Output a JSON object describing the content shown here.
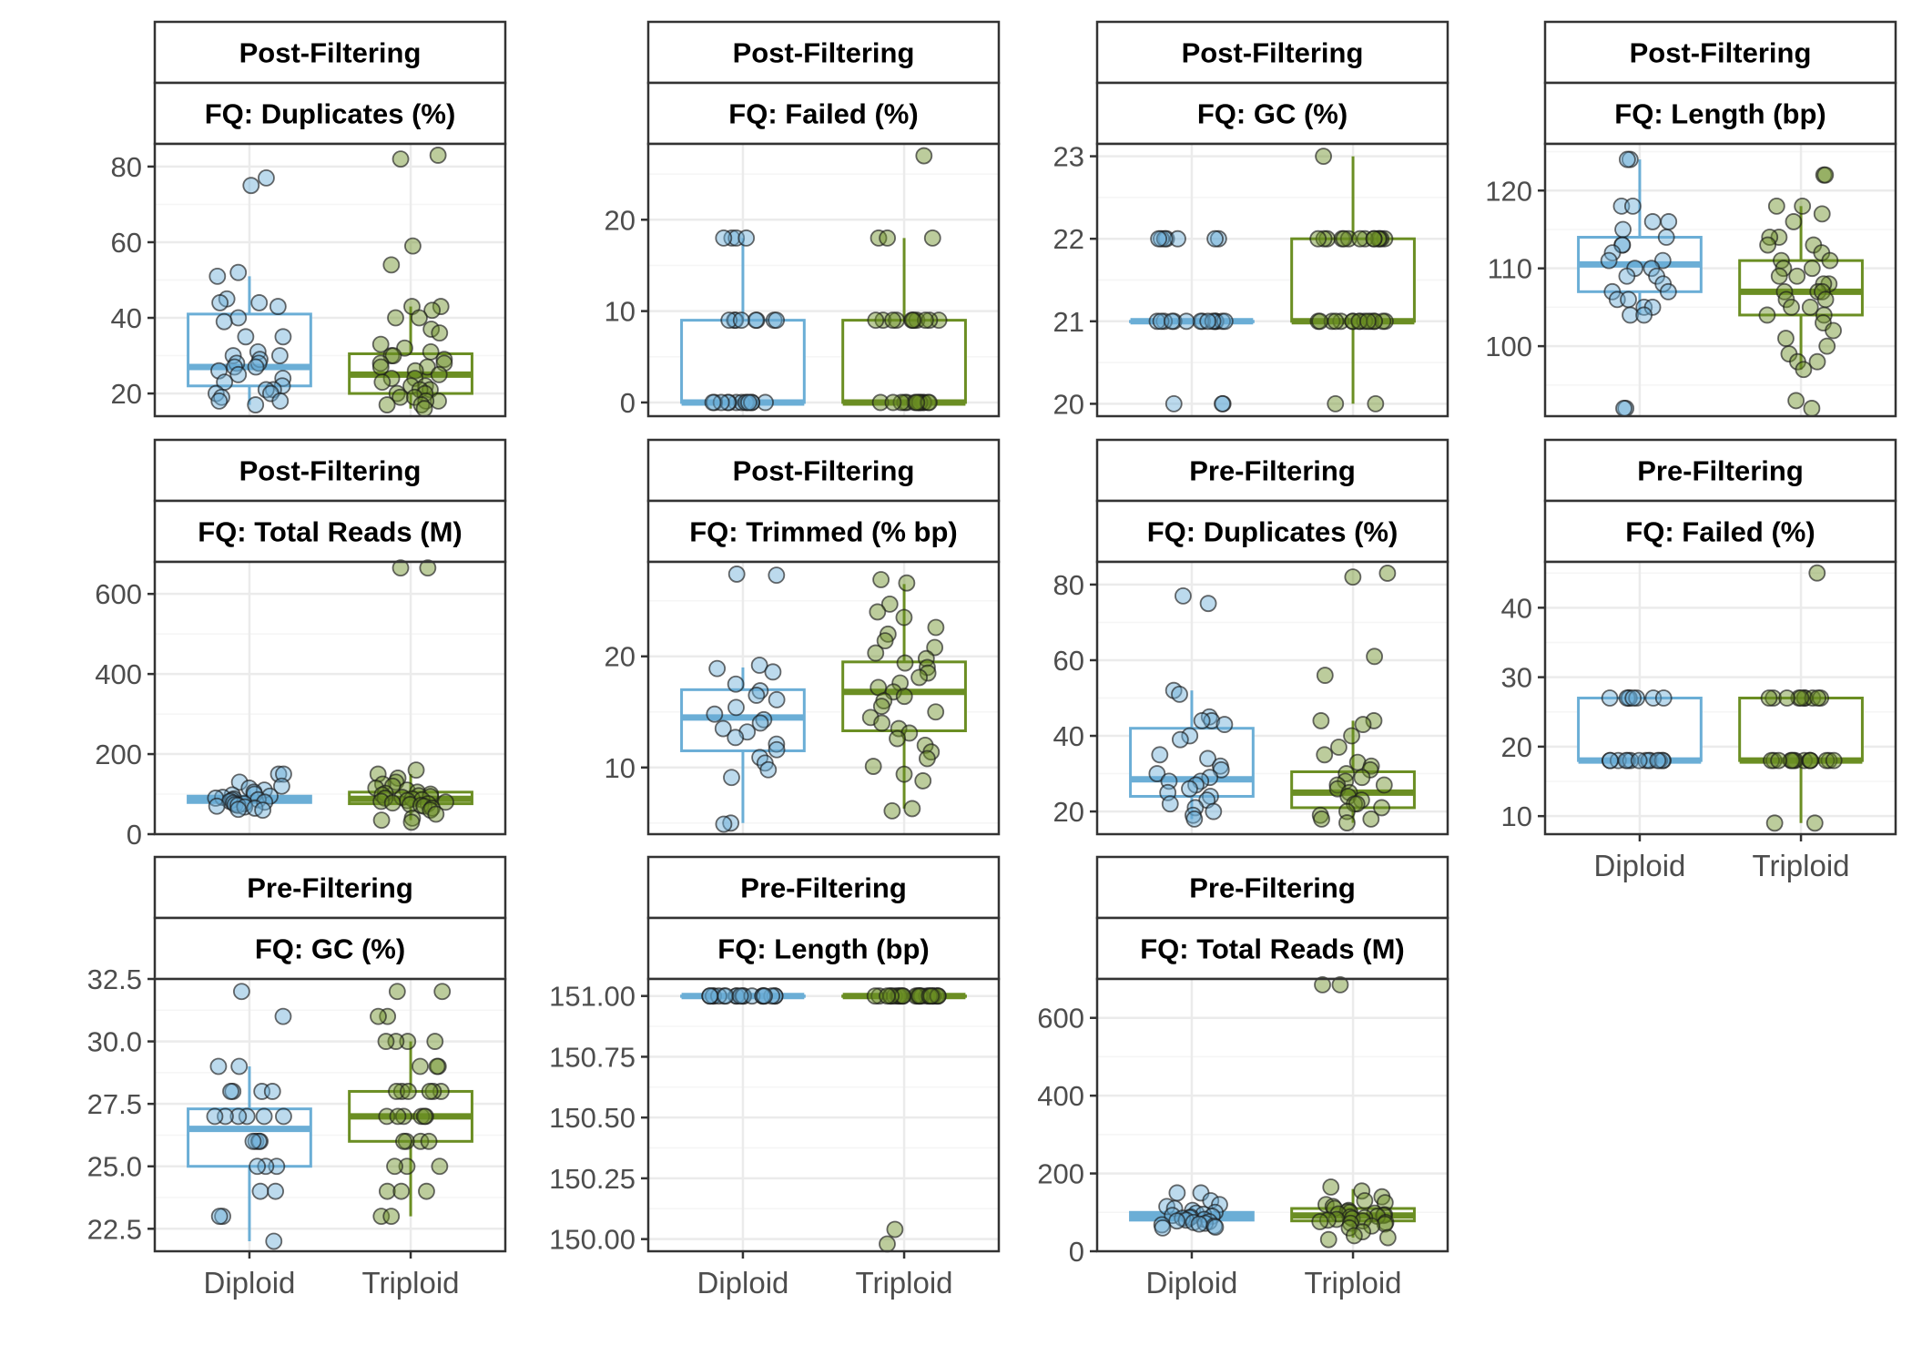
{
  "colors": {
    "diploid": "#6baed6",
    "triploid": "#6b8e23",
    "point_outline": "#1a1a1a",
    "strip_background": "#ffffff",
    "panel_border": "#333333",
    "grid_major": "#ebebeb",
    "grid_minor": "#f5f5f5"
  },
  "categories": [
    "Diploid",
    "Triploid"
  ],
  "chart_data": [
    {
      "type": "box",
      "strip_top": "Post-Filtering",
      "strip_bottom": "FQ: Duplicates (%)",
      "yticks": [
        20,
        40,
        60,
        80
      ],
      "ylim": [
        14,
        86
      ],
      "boxes": [
        {
          "q1": 22,
          "median": 27,
          "q3": 41,
          "lower": 17,
          "upper": 51
        },
        {
          "q1": 20,
          "median": 25,
          "q3": 30.5,
          "lower": 16,
          "upper": 43
        }
      ],
      "points": [
        [
          77,
          75,
          52,
          51,
          45,
          44,
          44,
          43,
          40,
          39,
          35,
          35,
          31,
          30,
          30,
          29,
          28,
          28,
          27,
          27,
          26,
          25,
          24,
          23,
          22,
          21,
          21,
          20,
          20,
          19,
          18,
          18,
          17
        ],
        [
          83,
          82,
          59,
          54,
          43,
          43,
          42,
          40,
          40,
          37,
          36,
          33,
          32,
          31,
          30,
          30,
          29,
          28,
          28,
          27,
          27,
          26,
          25,
          24,
          24,
          23,
          22,
          22,
          21,
          21,
          20,
          20,
          19,
          19,
          18,
          18,
          17,
          17,
          16
        ]
      ]
    },
    {
      "type": "box",
      "strip_top": "Post-Filtering",
      "strip_bottom": "FQ: Failed (%)",
      "yticks": [
        0,
        10,
        20
      ],
      "ylim": [
        -1.5,
        28.3
      ],
      "boxes": [
        {
          "q1": 0,
          "median": 0,
          "q3": 9,
          "lower": 0,
          "upper": 18
        },
        {
          "q1": 0,
          "median": 0,
          "q3": 9,
          "lower": 0,
          "upper": 18
        }
      ],
      "points": [
        [
          18,
          18,
          18,
          18,
          9,
          9,
          9,
          9,
          9,
          9,
          9,
          9,
          0,
          0,
          0,
          0,
          0,
          0,
          0,
          0,
          0,
          0,
          0,
          0,
          0
        ],
        [
          27,
          18,
          18,
          18,
          9,
          9,
          9,
          9,
          9,
          9,
          9,
          9,
          9,
          9,
          9,
          0,
          0,
          0,
          0,
          0,
          0,
          0,
          0,
          0,
          0,
          0,
          0,
          0,
          0,
          0
        ]
      ]
    },
    {
      "type": "box",
      "strip_top": "Post-Filtering",
      "strip_bottom": "FQ: GC (%)",
      "yticks": [
        20,
        21,
        22,
        23
      ],
      "ylim": [
        19.85,
        23.15
      ],
      "boxes": [
        {
          "q1": 21,
          "median": 21,
          "q3": 21,
          "lower": 21,
          "upper": 21
        },
        {
          "q1": 21,
          "median": 21,
          "q3": 22,
          "lower": 20,
          "upper": 23
        }
      ],
      "points": [
        [
          22,
          22,
          22,
          22,
          22,
          22,
          22,
          21,
          21,
          21,
          21,
          21,
          21,
          21,
          21,
          21,
          21,
          21,
          21,
          21,
          21,
          21,
          20,
          20,
          20
        ],
        [
          23,
          22,
          22,
          22,
          22,
          22,
          22,
          22,
          22,
          22,
          22,
          22,
          22,
          22,
          22,
          21,
          21,
          21,
          21,
          21,
          21,
          21,
          21,
          21,
          21,
          21,
          21,
          21,
          21,
          21,
          21,
          20,
          20
        ]
      ]
    },
    {
      "type": "box",
      "strip_top": "Post-Filtering",
      "strip_bottom": "FQ: Length (bp)",
      "yticks": [
        100,
        110,
        120
      ],
      "ylim": [
        91,
        126
      ],
      "boxes": [
        {
          "q1": 107,
          "median": 110.5,
          "q3": 114,
          "lower": 104,
          "upper": 124
        },
        {
          "q1": 104,
          "median": 107,
          "q3": 111,
          "lower": 97,
          "upper": 118
        }
      ],
      "points": [
        [
          124,
          124,
          118,
          118,
          116,
          116,
          115,
          114,
          113,
          113,
          112,
          111,
          111,
          110,
          110,
          109,
          109,
          108,
          107,
          107,
          106,
          106,
          105,
          105,
          104,
          104,
          92,
          92
        ],
        [
          122,
          122,
          118,
          118,
          117,
          116,
          114,
          114,
          113,
          113,
          112,
          111,
          111,
          110,
          110,
          109,
          109,
          108,
          108,
          107,
          107,
          107,
          106,
          106,
          105,
          105,
          104,
          104,
          103,
          102,
          101,
          100,
          99,
          98,
          98,
          97,
          93,
          92
        ]
      ]
    },
    {
      "type": "box",
      "strip_top": "Post-Filtering",
      "strip_bottom": "FQ: Total Reads (M)",
      "yticks": [
        0,
        200,
        400,
        600
      ],
      "ylim": [
        0,
        680
      ],
      "boxes": [
        {
          "q1": 79,
          "median": 86,
          "q3": 95,
          "lower": 60,
          "upper": 110
        },
        {
          "q1": 76,
          "median": 88,
          "q3": 105,
          "lower": 35,
          "upper": 150
        }
      ],
      "points": [
        [
          150,
          150,
          130,
          120,
          115,
          110,
          105,
          100,
          98,
          95,
          92,
          90,
          88,
          86,
          85,
          82,
          80,
          78,
          76,
          74,
          72,
          70,
          68,
          65,
          62,
          60
        ],
        [
          665,
          665,
          160,
          150,
          140,
          130,
          125,
          120,
          115,
          110,
          105,
          102,
          100,
          98,
          96,
          94,
          92,
          90,
          88,
          86,
          84,
          82,
          80,
          78,
          76,
          74,
          72,
          70,
          65,
          60,
          50,
          40,
          35,
          30
        ]
      ]
    },
    {
      "type": "box",
      "strip_top": "Post-Filtering",
      "strip_bottom": "FQ: Trimmed (% bp)",
      "yticks": [
        10,
        20
      ],
      "ylim": [
        4,
        28.5
      ],
      "boxes": [
        {
          "q1": 11.5,
          "median": 14.5,
          "q3": 17,
          "lower": 5,
          "upper": 19
        },
        {
          "q1": 13.3,
          "median": 16.8,
          "q3": 19.5,
          "lower": 6.3,
          "upper": 26.5
        }
      ],
      "points": [
        [
          27.4,
          27.3,
          19.2,
          18.9,
          18.6,
          17.5,
          16.9,
          16.5,
          16.1,
          15.4,
          14.8,
          14.3,
          14.0,
          13.5,
          13.2,
          12.7,
          12.1,
          11.6,
          10.9,
          10.4,
          9.8,
          9.1,
          5.0,
          4.9
        ],
        [
          26.9,
          26.6,
          24.7,
          24.0,
          23.5,
          22.6,
          22.0,
          21.4,
          20.8,
          20.3,
          19.8,
          19.4,
          19.0,
          18.5,
          18.1,
          17.6,
          17.2,
          16.8,
          16.4,
          16.0,
          15.5,
          15.0,
          14.5,
          14.0,
          13.5,
          13.1,
          12.6,
          12.0,
          11.4,
          10.8,
          10.1,
          9.4,
          8.8,
          6.3,
          6.1
        ]
      ]
    },
    {
      "type": "box",
      "strip_top": "Pre-Filtering",
      "strip_bottom": "FQ: Duplicates (%)",
      "yticks": [
        20,
        40,
        60,
        80
      ],
      "ylim": [
        14,
        86
      ],
      "boxes": [
        {
          "q1": 24,
          "median": 28.5,
          "q3": 42,
          "lower": 18,
          "upper": 52
        },
        {
          "q1": 21,
          "median": 25,
          "q3": 30.5,
          "lower": 17,
          "upper": 44
        }
      ],
      "points": [
        [
          77,
          75,
          52,
          51,
          45,
          44,
          44,
          43,
          40,
          39,
          35,
          34,
          32,
          31,
          30,
          29,
          28,
          28,
          27,
          26,
          25,
          24,
          23,
          22,
          21,
          20,
          19,
          18
        ],
        [
          83,
          82,
          61,
          56,
          44,
          44,
          43,
          40,
          37,
          35,
          33,
          32,
          31,
          30,
          29,
          28,
          27,
          27,
          26,
          25,
          24,
          23,
          22,
          22,
          21,
          20,
          19,
          18,
          18,
          17
        ]
      ]
    },
    {
      "type": "box",
      "strip_top": "Pre-Filtering",
      "strip_bottom": "FQ: Failed (%)",
      "yticks": [
        10,
        20,
        30,
        40
      ],
      "ylim": [
        7.4,
        46.6
      ],
      "boxes": [
        {
          "q1": 18,
          "median": 18,
          "q3": 27,
          "lower": 18,
          "upper": 27
        },
        {
          "q1": 18,
          "median": 18,
          "q3": 27,
          "lower": 9,
          "upper": 27
        }
      ],
      "points": [
        [
          27,
          27,
          27,
          27,
          27,
          27,
          27,
          27,
          18,
          18,
          18,
          18,
          18,
          18,
          18,
          18,
          18,
          18,
          18,
          18,
          18,
          18
        ],
        [
          45,
          27,
          27,
          27,
          27,
          27,
          27,
          27,
          27,
          27,
          27,
          18,
          18,
          18,
          18,
          18,
          18,
          18,
          18,
          18,
          18,
          18,
          18,
          18,
          18,
          9,
          9
        ]
      ]
    },
    {
      "type": "box",
      "strip_top": "Pre-Filtering",
      "strip_bottom": "FQ: GC (%)",
      "yticks": [
        22.5,
        25.0,
        27.5,
        30.0,
        32.5
      ],
      "tick_labels": [
        "22.5",
        "25.0",
        "27.5",
        "30.0",
        "32.5"
      ],
      "ylim": [
        21.6,
        32.5
      ],
      "boxes": [
        {
          "q1": 25,
          "median": 26.5,
          "q3": 27.3,
          "lower": 22,
          "upper": 29
        },
        {
          "q1": 26,
          "median": 27,
          "q3": 28,
          "lower": 23,
          "upper": 30
        }
      ],
      "points": [
        [
          32,
          31,
          29,
          29,
          28,
          28,
          28,
          28,
          27,
          27,
          27,
          27,
          27,
          27,
          26,
          26,
          26,
          26,
          25,
          25,
          25,
          24,
          24,
          23,
          23,
          22
        ],
        [
          32,
          32,
          31,
          31,
          30,
          30,
          30,
          30,
          29,
          29,
          29,
          28,
          28,
          28,
          28,
          28,
          28,
          27,
          27,
          27,
          27,
          27,
          27,
          26,
          26,
          26,
          26,
          25,
          25,
          25,
          24,
          24,
          24,
          23,
          23
        ]
      ]
    },
    {
      "type": "box",
      "strip_top": "Pre-Filtering",
      "strip_bottom": "FQ: Length (bp)",
      "yticks": [
        150.0,
        150.25,
        150.5,
        150.75,
        151.0
      ],
      "tick_labels": [
        "150.00",
        "150.25",
        "150.50",
        "150.75",
        "151.00"
      ],
      "ylim": [
        149.95,
        151.07
      ],
      "boxes": [
        {
          "q1": 151,
          "median": 151,
          "q3": 151,
          "lower": 151,
          "upper": 151
        },
        {
          "q1": 151,
          "median": 151,
          "q3": 151,
          "lower": 151,
          "upper": 151
        }
      ],
      "points": [
        [
          151,
          151,
          151,
          151,
          151,
          151,
          151,
          151,
          151,
          151,
          151,
          151,
          151,
          151,
          151,
          151,
          151,
          151,
          151,
          151
        ],
        [
          151,
          151,
          151,
          151,
          151,
          151,
          151,
          151,
          151,
          151,
          151,
          151,
          151,
          151,
          151,
          151,
          151,
          151,
          151,
          151,
          151,
          151,
          151,
          151,
          151,
          151,
          150.04,
          149.98
        ]
      ]
    },
    {
      "type": "box",
      "strip_top": "Pre-Filtering",
      "strip_bottom": "FQ: Total Reads (M)",
      "yticks": [
        0,
        200,
        400,
        600
      ],
      "ylim": [
        0,
        700
      ],
      "boxes": [
        {
          "q1": 80,
          "median": 90,
          "q3": 100,
          "lower": 60,
          "upper": 115
        },
        {
          "q1": 78,
          "median": 92,
          "q3": 110,
          "lower": 35,
          "upper": 160
        }
      ],
      "points": [
        [
          150,
          150,
          130,
          120,
          115,
          110,
          105,
          100,
          98,
          95,
          92,
          90,
          88,
          86,
          85,
          82,
          80,
          78,
          76,
          74,
          72,
          70,
          68,
          65,
          62,
          60
        ],
        [
          685,
          685,
          165,
          155,
          140,
          130,
          125,
          120,
          115,
          110,
          105,
          102,
          100,
          98,
          96,
          94,
          92,
          90,
          88,
          86,
          84,
          82,
          80,
          78,
          76,
          74,
          72,
          70,
          65,
          60,
          50,
          40,
          35,
          30
        ]
      ]
    }
  ]
}
